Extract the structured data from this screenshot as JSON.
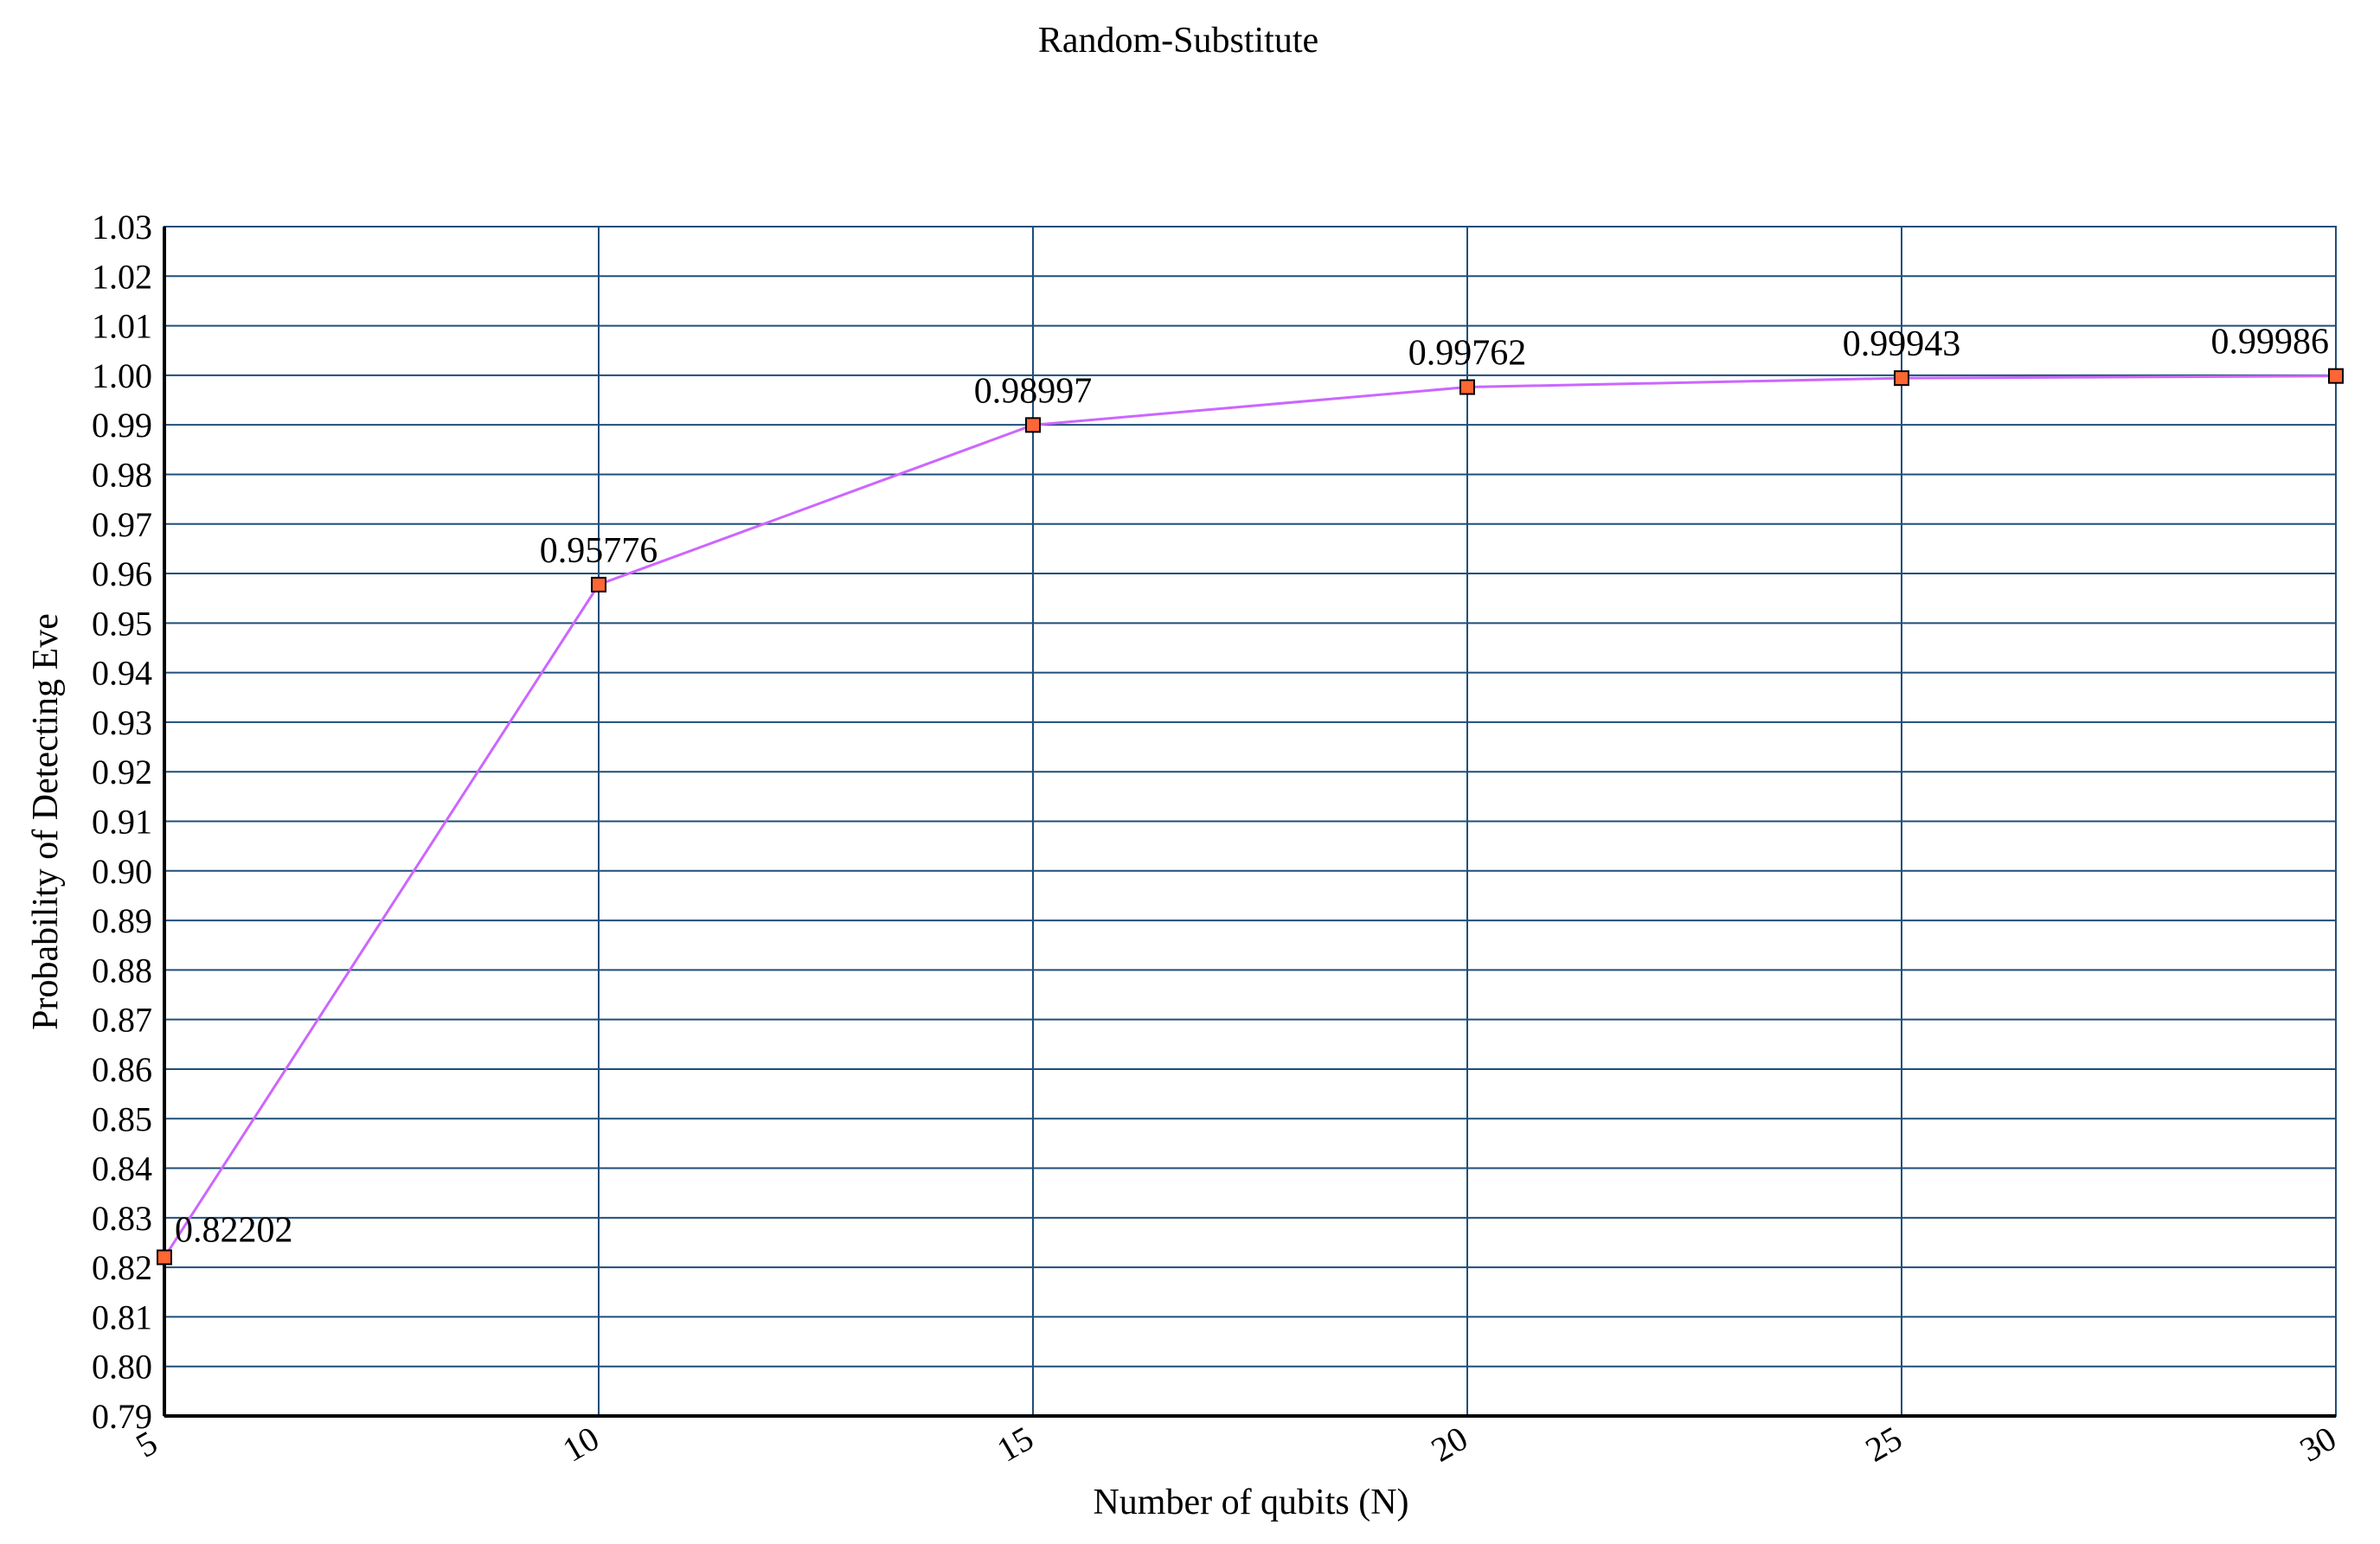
{
  "chart_data": {
    "type": "line",
    "title": "Random-Substitute",
    "xlabel": "Number of qubits (N)",
    "ylabel": "Probability of Detecting Eve",
    "x": [
      5,
      10,
      15,
      20,
      25,
      30
    ],
    "x_tick_labels": [
      "5",
      "10",
      "15",
      "20",
      "25",
      "30"
    ],
    "ylim": [
      0.79,
      1.03
    ],
    "y_tick_labels": [
      "0.79",
      "0.80",
      "0.81",
      "0.82",
      "0.83",
      "0.84",
      "0.85",
      "0.86",
      "0.87",
      "0.88",
      "0.89",
      "0.90",
      "0.91",
      "0.92",
      "0.93",
      "0.94",
      "0.95",
      "0.96",
      "0.97",
      "0.98",
      "0.99",
      "1.00",
      "1.01",
      "1.02",
      "1.03"
    ],
    "series": [
      {
        "values": [
          0.82202,
          0.95776,
          0.98997,
          0.99762,
          0.99943,
          0.99986
        ],
        "data_labels": [
          "0.82202",
          "0.95776",
          "0.98997",
          "0.99762",
          "0.99943",
          "0.99986"
        ],
        "line_color": "#cc66ff",
        "marker_fill": "#ff6633",
        "marker_stroke": "#000000"
      }
    ],
    "grid": true,
    "grid_color": "#1f4e79",
    "legend": "none"
  }
}
